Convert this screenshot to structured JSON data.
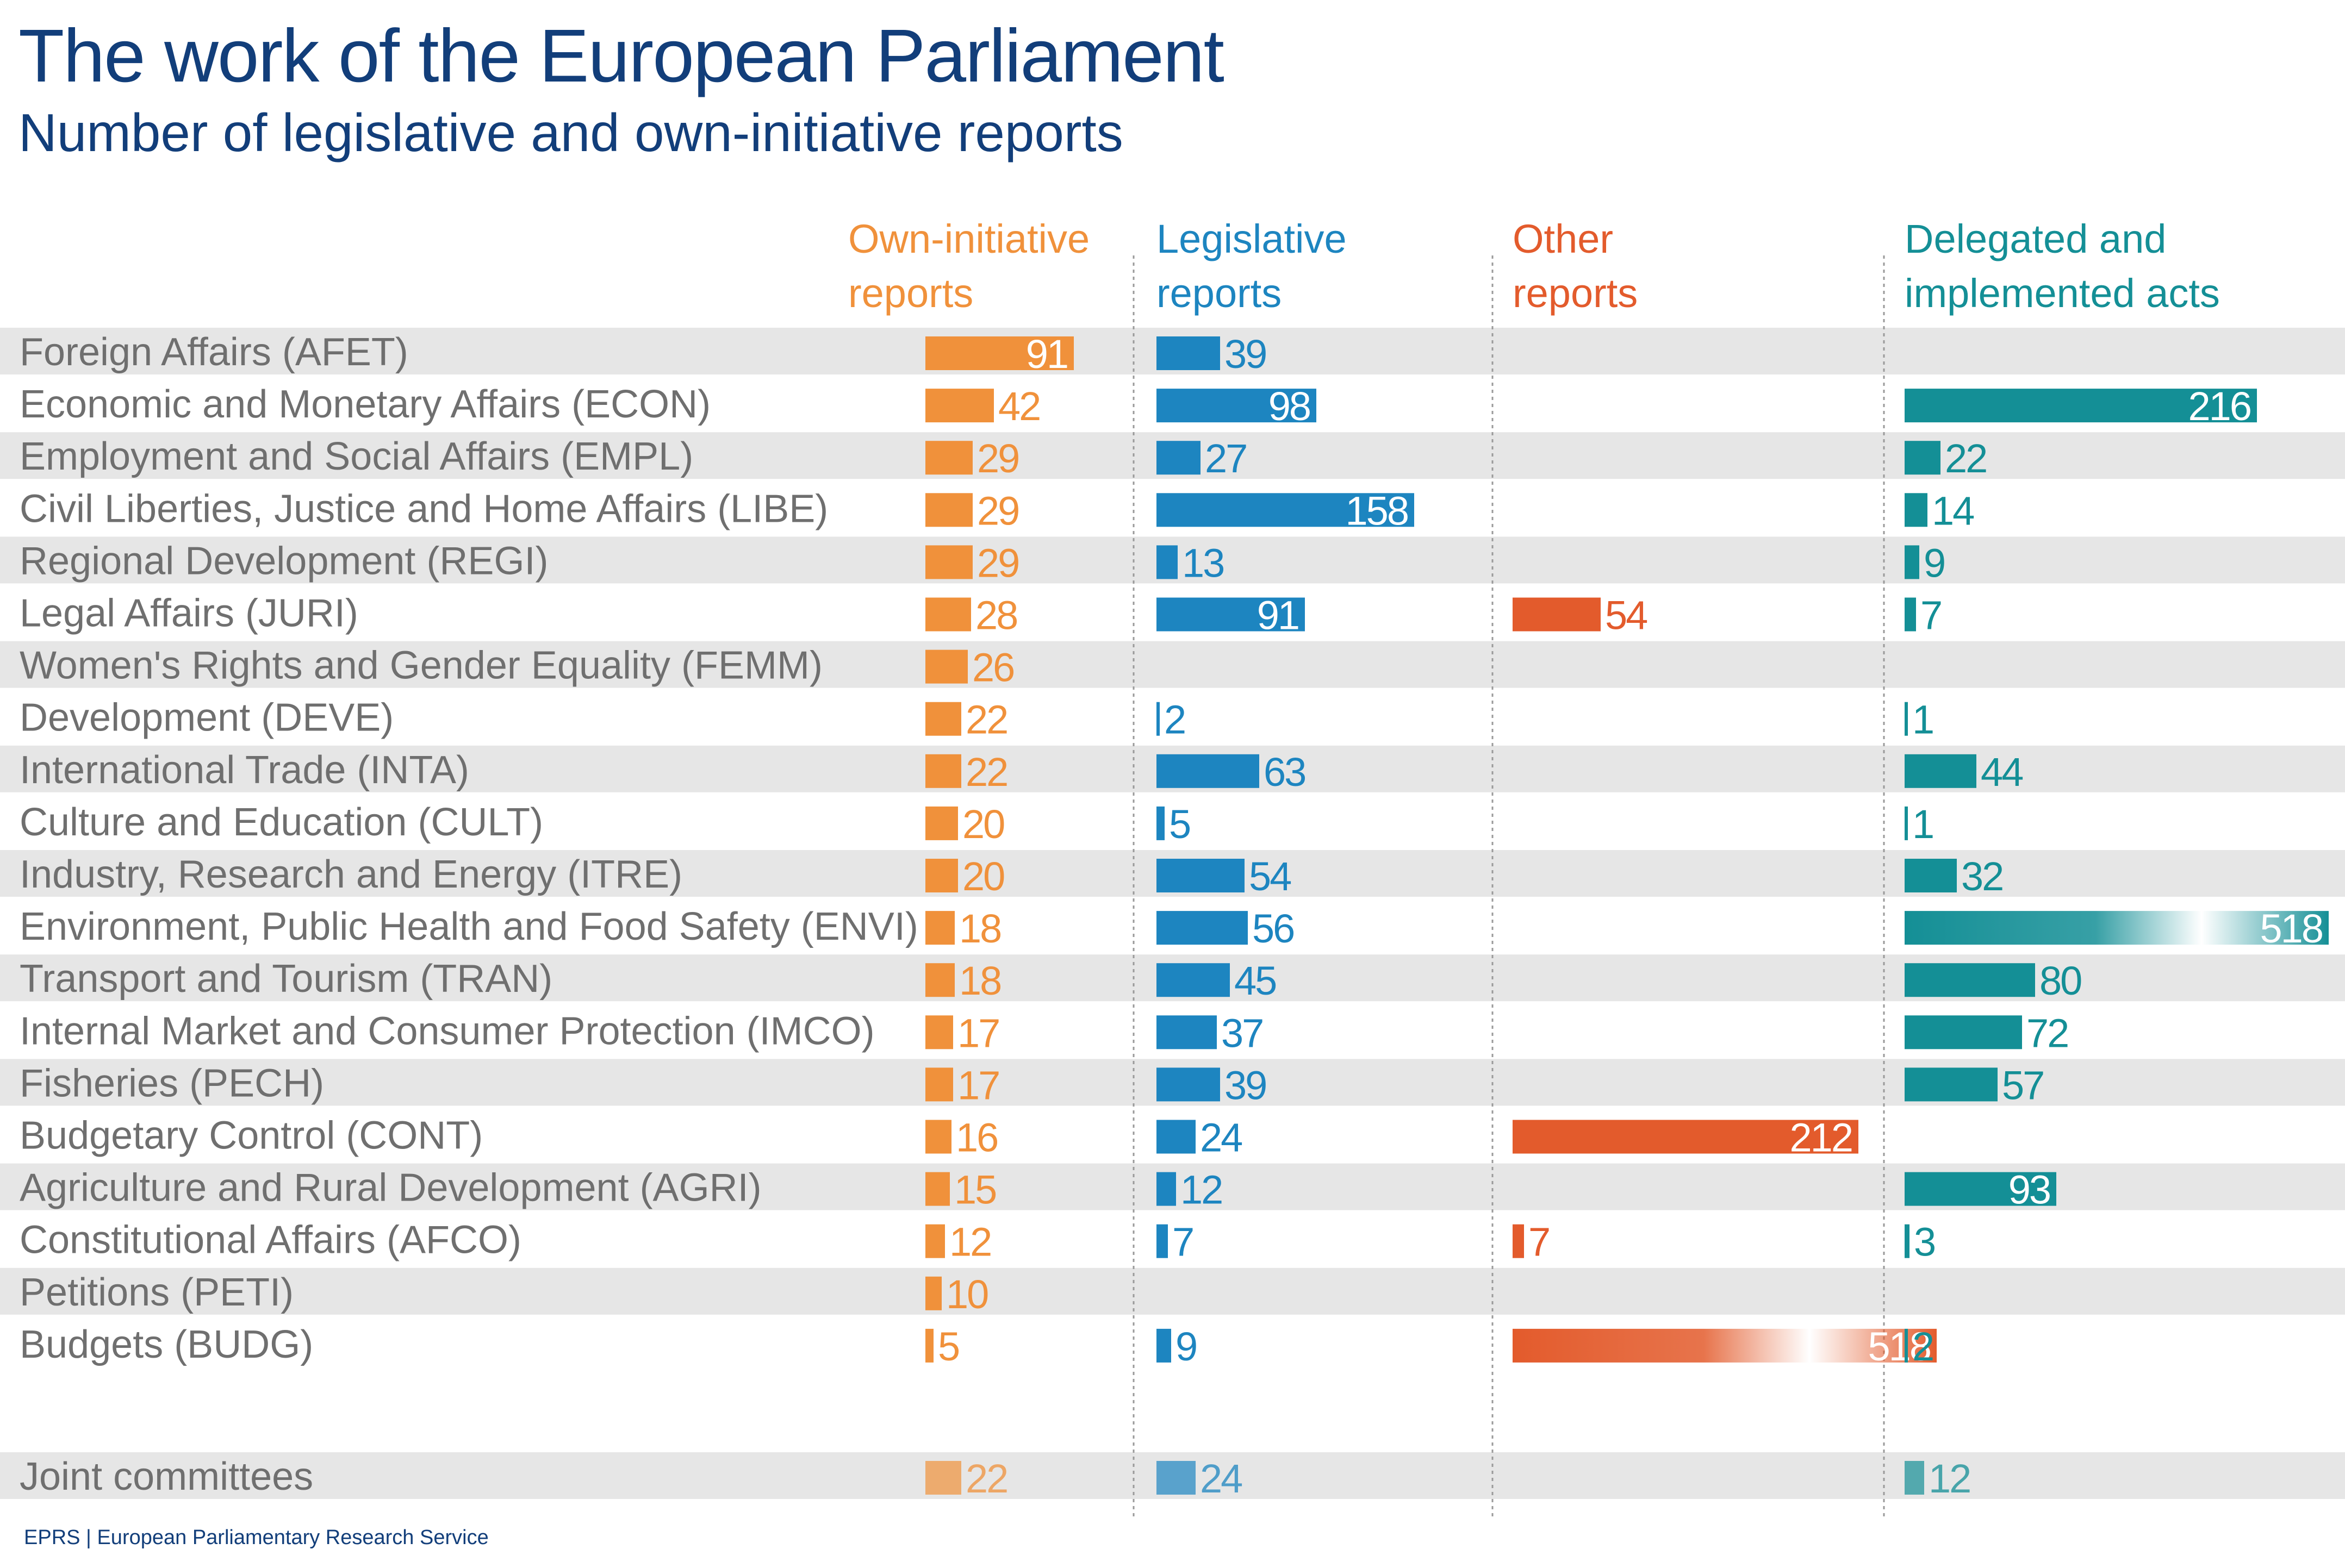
{
  "title": "The work of the European Parliament",
  "subtitle": "Number of legislative and own-initiative reports",
  "source": "EPRS | European Parliamentary Research Service",
  "colors": {
    "own_initiative": "#f0913b",
    "legislative": "#1d85c0",
    "other": "#e35b2c",
    "delegated": "#148f96",
    "row_band": "#e6e6e6"
  },
  "chart_data": {
    "type": "bar",
    "orientation": "horizontal",
    "grid": false,
    "categories": [
      "Foreign Affairs (AFET)",
      "Economic and Monetary Affairs (ECON)",
      "Employment and Social Affairs (EMPL)",
      "Civil Liberties, Justice and Home Affairs (LIBE)",
      "Regional Development (REGI)",
      "Legal Affairs (JURI)",
      "Women's Rights and Gender Equality (FEMM)",
      "Development (DEVE)",
      "International Trade (INTA)",
      "Culture and Education (CULT)",
      "Industry, Research and Energy (ITRE)",
      "Environment, Public Health and Food Safety (ENVI)",
      "Transport and Tourism (TRAN)",
      "Internal Market and Consumer Protection (IMCO)",
      "Fisheries (PECH)",
      "Budgetary Control (CONT)",
      "Agriculture and Rural Development (AGRI)",
      "Constitutional Affairs (AFCO)",
      "Petitions (PETI)",
      "Budgets (BUDG)",
      "Joint committees"
    ],
    "series": [
      {
        "name": "Own-initiative reports",
        "values": [
          91,
          42,
          29,
          29,
          29,
          28,
          26,
          22,
          22,
          20,
          20,
          18,
          18,
          17,
          17,
          16,
          15,
          12,
          10,
          5,
          22
        ]
      },
      {
        "name": "Legislative reports",
        "values": [
          39,
          98,
          27,
          158,
          13,
          91,
          null,
          2,
          63,
          5,
          54,
          56,
          45,
          37,
          39,
          24,
          12,
          7,
          null,
          9,
          24
        ]
      },
      {
        "name": "Other reports",
        "values": [
          null,
          null,
          null,
          null,
          null,
          54,
          null,
          null,
          null,
          null,
          null,
          null,
          null,
          null,
          null,
          212,
          null,
          7,
          null,
          518,
          null
        ]
      },
      {
        "name": "Delegated and implemented acts",
        "values": [
          null,
          216,
          22,
          14,
          9,
          7,
          null,
          1,
          44,
          1,
          32,
          518,
          80,
          72,
          57,
          null,
          93,
          3,
          null,
          2,
          12
        ]
      }
    ],
    "headers": [
      [
        "Own-initiative",
        "reports"
      ],
      [
        "Legislative",
        "reports"
      ],
      [
        "Other",
        "reports"
      ],
      [
        "Delegated and",
        "implemented acts"
      ]
    ]
  }
}
